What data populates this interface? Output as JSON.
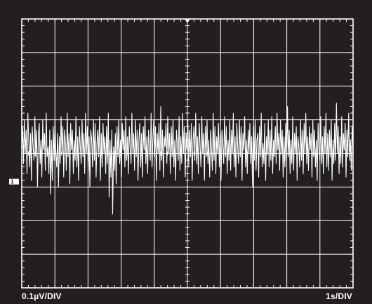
{
  "scope": {
    "background_color": "#231f20",
    "grid_color": "#ffffff",
    "trace_color": "#ffffff",
    "vertical_scale_label": "0.1µV/DIV",
    "horizontal_scale_label": "1s/DIV",
    "channel_marker": "1"
  },
  "chart_data": {
    "type": "line",
    "title": "",
    "xlabel": "1s/DIV",
    "ylabel": "0.1µV/DIV",
    "x_divisions": 10,
    "y_divisions": 8,
    "x_unit": "s",
    "x_per_div": 1,
    "y_unit": "µV",
    "y_per_div": 0.1,
    "xlim": [
      0,
      10
    ],
    "ylim": [
      -0.4,
      0.4
    ],
    "grid": true,
    "series": [
      {
        "values_uV": [
          0.0,
          0.06,
          -0.05,
          0.08,
          -0.02,
          0.05,
          -0.08,
          0.1,
          0.02,
          -0.06,
          0.04,
          -0.1,
          0.06,
          0.0,
          -0.04,
          0.09,
          -0.03,
          0.05,
          -0.12,
          0.03,
          0.07,
          -0.05,
          0.02,
          -0.09,
          0.08,
          -0.01,
          0.04,
          -0.07,
          0.1,
          -0.03,
          0.0,
          -0.08,
          0.05,
          -0.14,
          0.02,
          -0.1,
          0.06,
          -0.04,
          0.08,
          -0.02,
          -0.06,
          0.04,
          -0.12,
          0.03,
          -0.05,
          0.09,
          -0.02,
          0.06,
          -0.09,
          0.05,
          0.01,
          -0.07,
          0.1,
          -0.03,
          0.04,
          -0.11,
          0.07,
          -0.01,
          0.05,
          -0.08,
          0.02,
          -0.04,
          0.09,
          -0.06,
          0.03,
          -0.1,
          0.06,
          0.0,
          -0.05,
          0.08,
          -0.03,
          0.04,
          -0.08,
          0.1,
          -0.02,
          0.06,
          -0.07,
          0.03,
          -0.12,
          0.05,
          0.02,
          -0.06,
          0.08,
          -0.04,
          0.07,
          -0.09,
          0.01,
          0.05,
          -0.03,
          0.09,
          -0.1,
          0.04,
          -0.06,
          0.07,
          -0.02,
          0.03,
          -0.08,
          0.06,
          -0.05,
          0.1,
          -0.15,
          0.02,
          -0.09,
          0.05,
          -0.2,
          0.0,
          -0.07,
          0.04,
          -0.11,
          0.06,
          -0.03,
          0.08,
          -0.05,
          0.02,
          -0.09,
          0.07,
          -0.01,
          0.05,
          -0.06,
          0.09,
          -0.04,
          0.03,
          -0.08,
          0.06,
          0.0,
          -0.05,
          0.1,
          -0.02,
          0.04,
          -0.07,
          0.08,
          -0.03,
          0.05,
          -0.1,
          0.02,
          0.07,
          -0.06,
          0.04,
          -0.09,
          0.06,
          -0.01,
          0.09,
          -0.05,
          0.03,
          -0.08,
          0.05,
          0.0,
          -0.04,
          0.1,
          -0.06,
          0.02,
          0.08,
          -0.03,
          0.06,
          -0.1,
          0.04,
          -0.02,
          0.07,
          -0.07,
          0.12,
          -0.04,
          0.05,
          -0.09,
          0.03,
          0.0,
          0.07,
          -0.05,
          0.09,
          -0.02,
          0.04,
          -0.08,
          0.06,
          -0.03,
          0.08,
          -0.06,
          0.02,
          -0.1,
          0.05,
          0.01,
          -0.04,
          0.09,
          -0.07,
          0.03,
          -0.05,
          0.1,
          -0.02,
          0.06,
          -0.09,
          0.04,
          -0.01,
          0.08,
          -0.06,
          0.05,
          -0.03,
          0.07,
          -0.1,
          0.02,
          0.06,
          -0.04,
          0.1,
          -0.05,
          0.03,
          -0.08,
          0.07,
          0.0,
          -0.06,
          0.09,
          -0.02,
          0.04,
          -0.1,
          0.06,
          -0.03,
          0.08,
          -0.05,
          0.02,
          -0.09,
          0.05,
          0.0,
          -0.07,
          0.1,
          -0.04,
          0.06,
          -0.08,
          0.03,
          -0.02,
          0.07,
          -0.06,
          0.04,
          -0.1,
          0.05,
          0.01,
          -0.05,
          0.09,
          -0.03,
          0.06,
          -0.08,
          0.02,
          -0.04,
          0.08,
          -0.07,
          0.05,
          -0.02,
          0.1,
          -0.06,
          0.03,
          -0.09,
          0.07,
          0.0,
          -0.05,
          0.08,
          -0.03,
          0.06,
          -0.1,
          0.04,
          -0.01,
          0.09,
          -0.06,
          0.02,
          -0.08,
          0.05,
          -0.02,
          0.07,
          -0.05,
          0.03,
          -0.12,
          0.06,
          -0.04,
          0.08,
          -0.07,
          0.02,
          0.04,
          -0.09,
          0.06,
          -0.03,
          0.1,
          -0.06,
          0.01,
          -0.05,
          0.07,
          -0.1,
          0.03,
          -0.02,
          0.08,
          -0.06,
          0.05,
          -0.04,
          0.09,
          -0.08,
          0.02,
          -0.03,
          0.06,
          -0.05,
          0.1,
          -0.01,
          0.04,
          -0.07,
          0.08,
          -0.02,
          0.05,
          -0.09,
          0.03,
          -0.06,
          0.07,
          -0.04,
          0.12,
          -0.03,
          0.05,
          -0.08,
          0.02,
          -0.05,
          0.09,
          -0.07,
          0.04,
          -0.02,
          0.06,
          -0.1,
          0.03,
          0.0,
          -0.06,
          0.08,
          -0.04,
          0.05,
          -0.08,
          0.07,
          -0.02,
          0.1,
          -0.05,
          0.03,
          -0.07,
          0.06,
          -0.01,
          0.04,
          -0.09,
          0.08,
          -0.03,
          0.05,
          -0.06,
          0.02,
          -0.1,
          0.07,
          0.0,
          -0.04,
          0.09,
          -0.05,
          0.03,
          -0.08,
          0.06,
          -0.02,
          0.1,
          -0.06,
          0.04,
          -0.07,
          0.05,
          -0.03,
          0.08,
          -0.1,
          0.02,
          -0.05,
          0.07,
          -0.04,
          0.13,
          -0.02,
          0.06,
          -0.08,
          0.03,
          -0.05,
          0.09,
          -0.06,
          0.04,
          -0.01,
          0.07,
          -0.09,
          0.05,
          -0.03,
          0.1,
          -0.04,
          0.02,
          -0.07,
          0.06,
          0.0
        ]
      }
    ]
  }
}
